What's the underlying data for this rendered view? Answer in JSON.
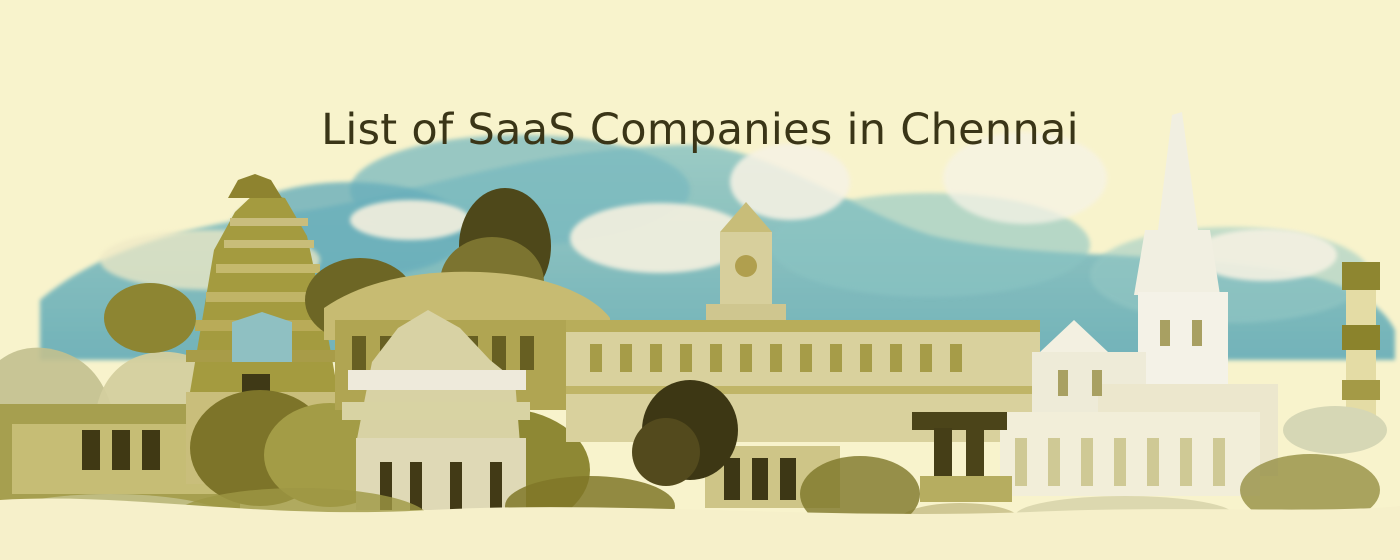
{
  "banner": {
    "title": "List of SaaS Companies in Chennai"
  },
  "illustration": {
    "subject": "Chennai skyline watercolor collage",
    "palette": {
      "background": "#f8f3cc",
      "sky": "#78b8bf",
      "olive": "#8e8630",
      "darkOlive": "#4a4518",
      "light": "#f5f0d8"
    }
  }
}
